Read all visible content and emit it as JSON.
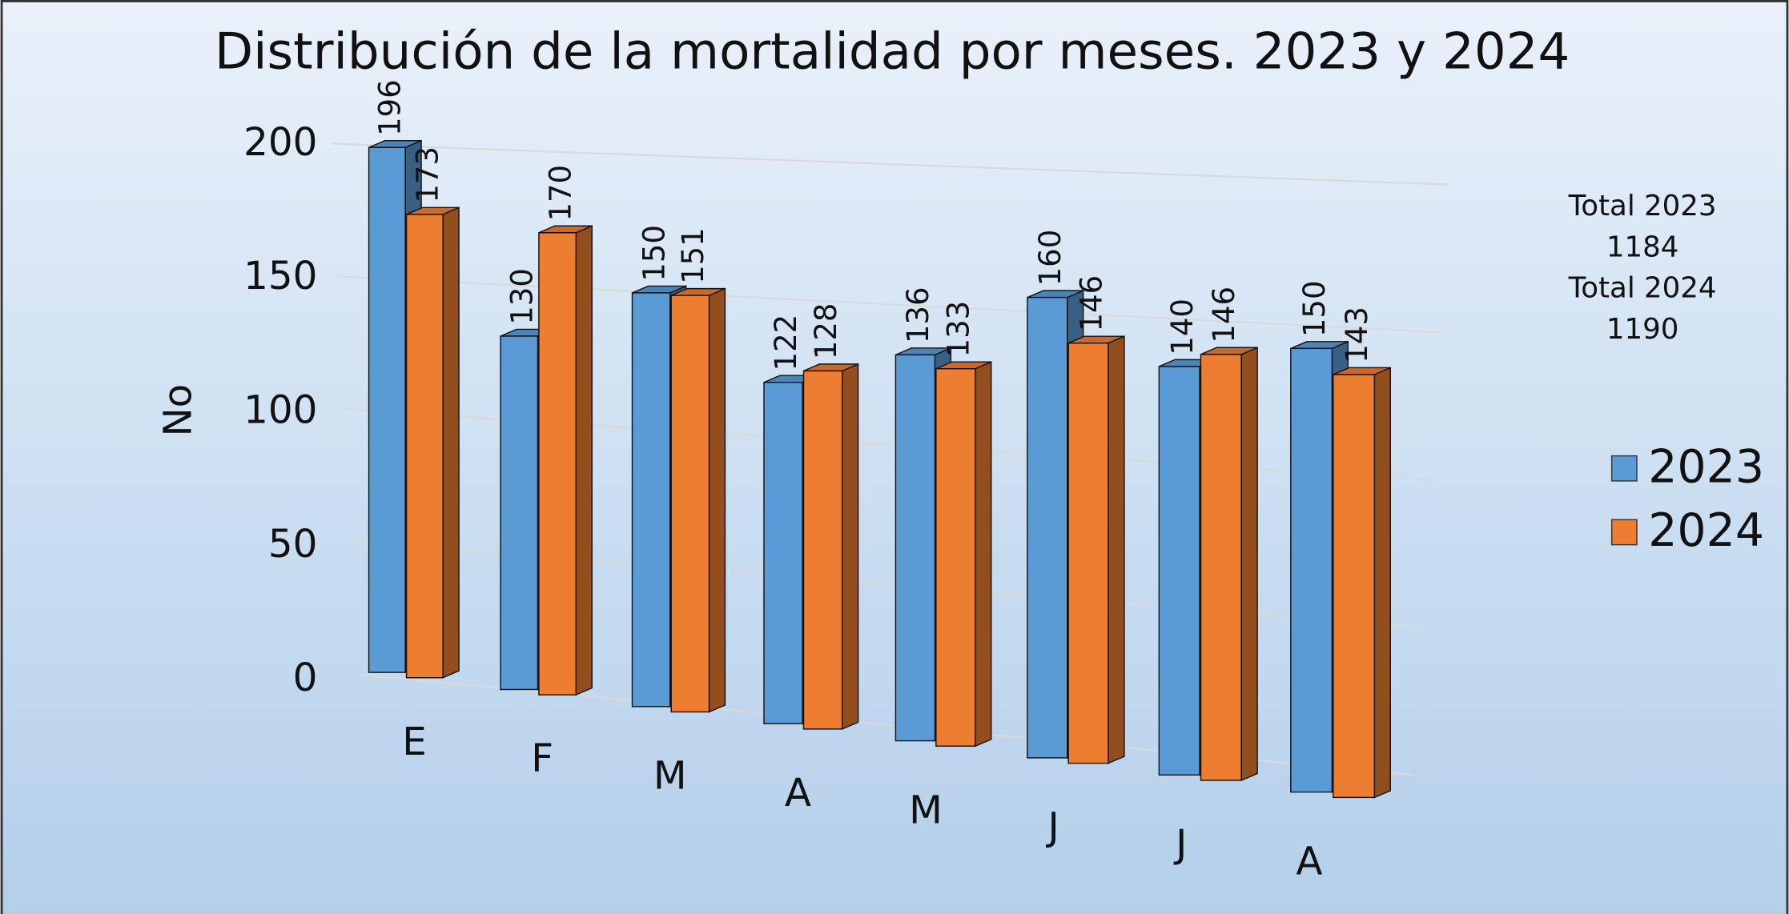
{
  "chart_data": {
    "type": "bar3d",
    "title": "Distribución de la mortalidad por meses. 2023 y 2024",
    "y_label": "No",
    "categories": [
      "E",
      "F",
      "M",
      "A",
      "M",
      "J",
      "J",
      "A"
    ],
    "series": [
      {
        "name": "2023",
        "color": "#5b9bd5",
        "values": [
          196,
          130,
          150,
          122,
          136,
          160,
          140,
          150
        ]
      },
      {
        "name": "2024",
        "color": "#ed7d31",
        "values": [
          173,
          170,
          151,
          128,
          133,
          146,
          146,
          143
        ]
      }
    ],
    "ylim": [
      0,
      200
    ],
    "yticks": [
      0,
      50,
      100,
      150,
      200
    ],
    "grid": true,
    "legend": "right",
    "annotations": [
      {
        "label": "Total 2023",
        "value": 1184
      },
      {
        "label": "Total 2024",
        "value": 1190
      }
    ]
  }
}
